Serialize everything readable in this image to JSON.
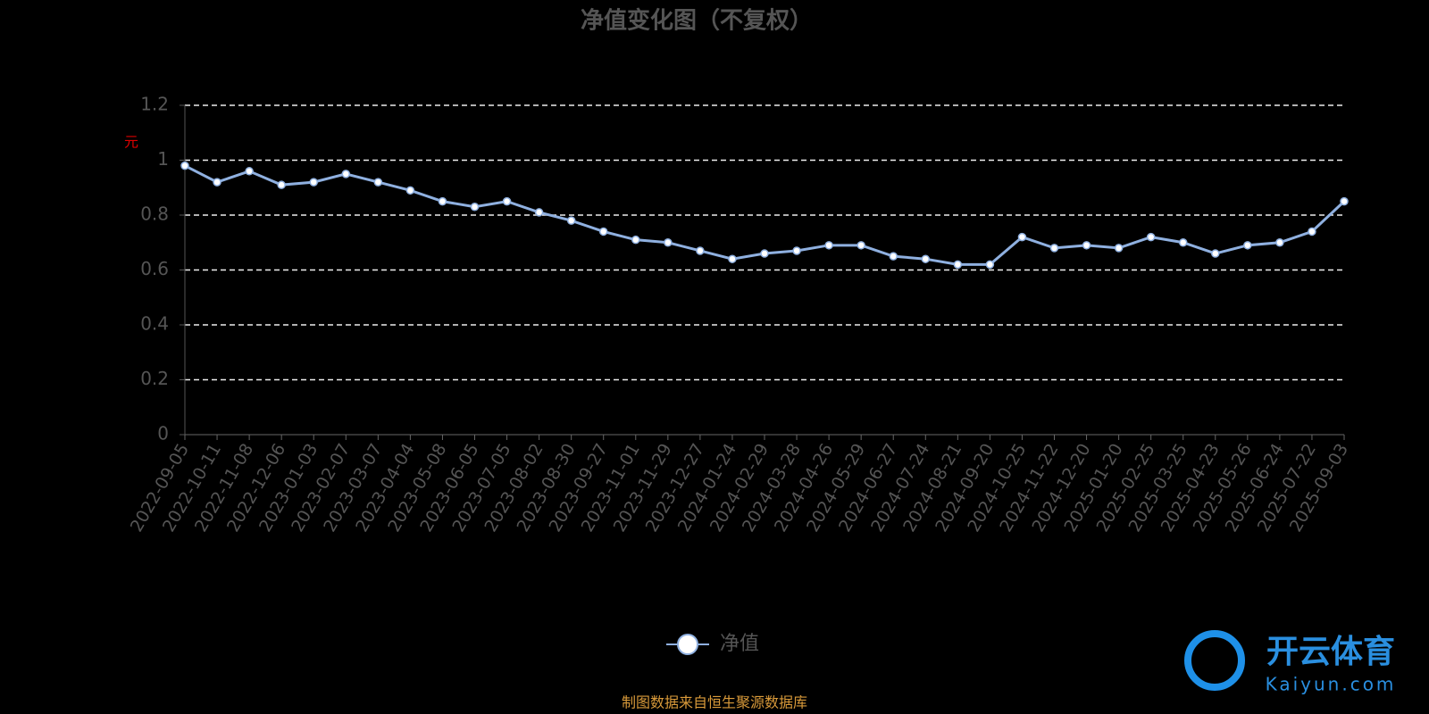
{
  "chart_data": {
    "type": "line",
    "title": "净值变化图（不复权）",
    "y_label": "元",
    "categories": [
      "2022-09-05",
      "2022-10-11",
      "2022-11-08",
      "2022-12-06",
      "2023-01-03",
      "2023-02-07",
      "2023-03-07",
      "2023-04-04",
      "2023-05-08",
      "2023-06-05",
      "2023-07-05",
      "2023-08-02",
      "2023-08-30",
      "2023-09-27",
      "2023-11-01",
      "2023-11-29",
      "2023-12-27",
      "2024-01-24",
      "2024-02-29",
      "2024-03-28",
      "2024-04-26",
      "2024-05-29",
      "2024-06-27",
      "2024-07-24",
      "2024-08-21",
      "2024-09-20",
      "2024-10-25",
      "2024-11-22",
      "2024-12-20",
      "2025-01-20",
      "2025-02-25",
      "2025-03-25",
      "2025-04-23",
      "2025-05-26",
      "2025-06-24",
      "2025-07-22",
      "2025-09-03"
    ],
    "series": [
      {
        "name": "净值",
        "color": "#8fb0e0",
        "values": [
          0.98,
          0.92,
          0.96,
          0.91,
          0.92,
          0.95,
          0.92,
          0.89,
          0.85,
          0.83,
          0.85,
          0.81,
          0.78,
          0.74,
          0.71,
          0.7,
          0.67,
          0.64,
          0.66,
          0.67,
          0.69,
          0.69,
          0.65,
          0.64,
          0.62,
          0.62,
          0.72,
          0.68,
          0.69,
          0.68,
          0.72,
          0.7,
          0.66,
          0.69,
          0.7,
          0.74,
          0.85
        ]
      }
    ],
    "ylim": [
      0,
      1.2
    ],
    "yticks": [
      0,
      0.2,
      0.4,
      0.6,
      0.8,
      1,
      1.2
    ],
    "grid": true,
    "legend": "bottom",
    "source": "制图数据来自恒生聚源数据库",
    "watermark": {
      "brand": "开云体育",
      "site": "Kaiyun.com"
    }
  }
}
